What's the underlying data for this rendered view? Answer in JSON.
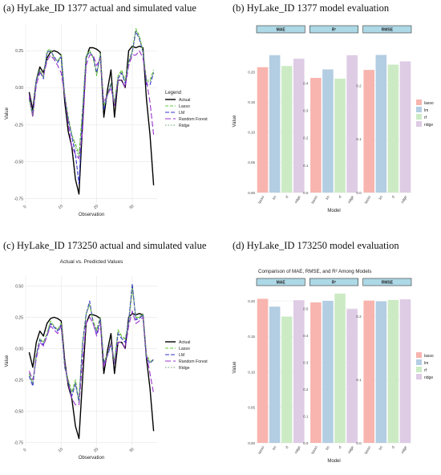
{
  "panels": {
    "a": {
      "title": "(a)  HyLake_ID 1377 actual and simulated value"
    },
    "b": {
      "title": "(b)  HyLake_ID 1377 model evaluation"
    },
    "c": {
      "title": "(c)  HyLake_ID 173250 actual and simulated value"
    },
    "d": {
      "title": "(d)  HyLake_ID 173250 model evaluation"
    }
  },
  "colors": {
    "actual": "#000000",
    "lasso": "#66cc33",
    "lm": "#3333cc",
    "random_forest": "#9933cc",
    "ridge": "#669966",
    "bar_lasso": "#f8b4ae",
    "bar_lm": "#b3cde3",
    "bar_rf": "#ccebc5",
    "bar_ridge": "#decbe4",
    "strip_fill": "#add8e6",
    "grid": "#e6e6e6"
  },
  "chart_data": [
    {
      "panel": "a",
      "type": "line",
      "title": "",
      "xlabel": "Observation",
      "ylabel": "Value",
      "xlim": [
        0,
        37
      ],
      "ylim": [
        -0.78,
        0.43
      ],
      "x_ticks": [
        0,
        10,
        20,
        30
      ],
      "y_ticks": [
        -0.75,
        -0.5,
        -0.25,
        0.0,
        0.25
      ],
      "y_tick_labels": [
        "-0.75",
        "-0.50",
        "-0.25",
        "0.00",
        "0.25"
      ],
      "legend": {
        "title": "Legend",
        "entries": [
          "Actual",
          "Lasso",
          "LM",
          "Random Forest",
          "Ridge"
        ],
        "position": "right"
      },
      "x": [
        1,
        2,
        3,
        4,
        5,
        6,
        7,
        8,
        9,
        10,
        11,
        12,
        13,
        14,
        15,
        16,
        17,
        18,
        19,
        20,
        21,
        22,
        23,
        24,
        25,
        26,
        27,
        28,
        29,
        30,
        31,
        32,
        33,
        34,
        35,
        36
      ],
      "series": [
        {
          "name": "Actual",
          "values": [
            -0.03,
            -0.15,
            0.05,
            0.14,
            0.1,
            0.2,
            0.24,
            0.25,
            0.24,
            0.22,
            -0.1,
            -0.3,
            -0.4,
            -0.62,
            -0.72,
            -0.25,
            0.2,
            0.27,
            0.27,
            0.26,
            0.24,
            -0.2,
            -0.02,
            0.12,
            -0.2,
            0.05,
            0.05,
            0.0,
            0.25,
            0.28,
            0.27,
            0.28,
            0.27,
            -0.08,
            -0.32,
            -0.66
          ]
        },
        {
          "name": "Lasso",
          "values": [
            -0.08,
            -0.2,
            0.05,
            0.12,
            0.07,
            0.25,
            0.26,
            0.2,
            0.18,
            0.22,
            -0.05,
            -0.2,
            -0.32,
            -0.38,
            -0.45,
            -0.15,
            0.22,
            0.25,
            0.2,
            0.08,
            0.23,
            -0.12,
            -0.05,
            0.03,
            -0.1,
            0.08,
            0.12,
            0.05,
            0.18,
            0.25,
            0.4,
            0.35,
            0.25,
            0.05,
            0.05,
            0.12
          ]
        },
        {
          "name": "LM",
          "values": [
            -0.07,
            -0.18,
            0.05,
            0.11,
            0.06,
            0.24,
            0.25,
            0.21,
            0.17,
            0.21,
            -0.07,
            -0.22,
            -0.33,
            -0.45,
            -0.65,
            -0.18,
            0.21,
            0.24,
            0.21,
            0.1,
            0.22,
            -0.15,
            -0.05,
            0.02,
            -0.12,
            0.06,
            0.1,
            0.03,
            0.17,
            0.24,
            0.38,
            0.33,
            0.24,
            0.02,
            0.02,
            0.1
          ]
        },
        {
          "name": "Random Forest",
          "values": [
            -0.05,
            -0.2,
            0.02,
            0.1,
            0.08,
            0.18,
            0.22,
            0.19,
            0.15,
            0.1,
            -0.05,
            -0.25,
            -0.4,
            -0.45,
            -0.48,
            -0.3,
            0.15,
            0.22,
            0.22,
            0.15,
            0.2,
            -0.1,
            -0.05,
            0.0,
            -0.12,
            0.05,
            0.05,
            0.0,
            0.15,
            0.22,
            0.22,
            0.25,
            0.2,
            0.05,
            -0.1,
            -0.32
          ]
        },
        {
          "name": "Ridge",
          "values": [
            -0.08,
            -0.18,
            0.05,
            0.12,
            0.07,
            0.23,
            0.25,
            0.2,
            0.18,
            0.21,
            -0.06,
            -0.21,
            -0.32,
            -0.4,
            -0.47,
            -0.17,
            0.21,
            0.24,
            0.21,
            0.09,
            0.22,
            -0.13,
            -0.05,
            0.03,
            -0.11,
            0.07,
            0.11,
            0.04,
            0.17,
            0.24,
            0.39,
            0.34,
            0.24,
            0.04,
            0.04,
            0.11
          ]
        }
      ]
    },
    {
      "panel": "b",
      "type": "bar",
      "title": "",
      "xlabel": "Model",
      "ylabel": "Value",
      "categories": [
        "lasso",
        "lm",
        "rf",
        "ridge"
      ],
      "legend": {
        "entries": [
          "lasso",
          "lm",
          "rf",
          "ridge"
        ],
        "position": "right"
      },
      "facets": [
        {
          "strip": "MAE",
          "ylim": [
            0,
            0.237
          ],
          "y_ticks": [
            0,
            0.05,
            0.1,
            0.15,
            0.2
          ],
          "y_tick_labels": [
            "0.00",
            "0.05",
            "0.10",
            "0.15",
            "0.20"
          ],
          "values": [
            0.208,
            0.228,
            0.21,
            0.222
          ]
        },
        {
          "strip": "R²",
          "ylim": [
            0,
            0.523
          ],
          "y_ticks": [
            0,
            0.1,
            0.2,
            0.3,
            0.4
          ],
          "y_tick_labels": [
            "0.0",
            "0.1",
            "0.2",
            "0.3",
            "0.4"
          ],
          "values": [
            0.42,
            0.451,
            0.417,
            0.503
          ]
        },
        {
          "strip": "RMSE",
          "ylim": [
            0,
            0.2667
          ],
          "y_ticks": [
            0,
            0.1,
            0.2
          ],
          "y_tick_labels": [
            "0.0",
            "0.1",
            "0.2"
          ],
          "values": [
            0.229,
            0.257,
            0.239,
            0.245
          ]
        }
      ]
    },
    {
      "panel": "c",
      "type": "line",
      "title": "Actual vs. Predicted Values",
      "xlabel": "Observation",
      "ylabel": "Value",
      "xlim": [
        0,
        37
      ],
      "ylim": [
        -0.78,
        0.58
      ],
      "x_ticks": [
        0,
        10,
        20,
        30
      ],
      "y_ticks": [
        -0.75,
        -0.5,
        -0.25,
        0.0,
        0.25,
        0.5
      ],
      "y_tick_labels": [
        "-0.75",
        "-0.50",
        "-0.25",
        "0.00",
        "0.25",
        "0.50"
      ],
      "legend": {
        "title": "",
        "entries": [
          "Actual",
          "Lasso",
          "LM",
          "Random Forest",
          "Ridge"
        ],
        "position": "right"
      },
      "x": [
        1,
        2,
        3,
        4,
        5,
        6,
        7,
        8,
        9,
        10,
        11,
        12,
        13,
        14,
        15,
        16,
        17,
        18,
        19,
        20,
        21,
        22,
        23,
        24,
        25,
        26,
        27,
        28,
        29,
        30,
        31,
        32,
        33,
        34,
        35,
        36
      ],
      "series": [
        {
          "name": "Actual",
          "values": [
            -0.03,
            -0.15,
            0.05,
            0.14,
            0.1,
            0.2,
            0.24,
            0.25,
            0.24,
            0.22,
            -0.1,
            -0.3,
            -0.4,
            -0.62,
            -0.72,
            -0.25,
            0.2,
            0.27,
            0.27,
            0.26,
            0.24,
            -0.2,
            -0.02,
            0.12,
            -0.2,
            0.05,
            0.05,
            0.0,
            0.25,
            0.28,
            0.27,
            0.28,
            0.27,
            -0.08,
            -0.32,
            -0.66
          ]
        },
        {
          "name": "Lasso",
          "values": [
            -0.2,
            -0.28,
            -0.05,
            0.08,
            0.05,
            0.12,
            0.22,
            0.18,
            0.15,
            0.2,
            -0.15,
            -0.25,
            -0.35,
            -0.25,
            -0.42,
            0.05,
            0.28,
            0.35,
            0.22,
            0.15,
            0.25,
            -0.1,
            -0.05,
            0.05,
            -0.1,
            0.15,
            0.1,
            0.08,
            0.2,
            0.48,
            0.25,
            0.25,
            0.28,
            -0.05,
            -0.1,
            -0.1
          ]
        },
        {
          "name": "LM",
          "values": [
            -0.22,
            -0.3,
            -0.05,
            0.07,
            0.03,
            0.1,
            0.2,
            0.17,
            0.14,
            0.19,
            -0.15,
            -0.27,
            -0.38,
            -0.28,
            -0.43,
            0.03,
            0.27,
            0.38,
            0.2,
            0.12,
            0.24,
            -0.12,
            -0.06,
            0.03,
            -0.12,
            0.12,
            0.08,
            0.05,
            0.22,
            0.52,
            0.23,
            0.24,
            0.27,
            -0.08,
            -0.12,
            -0.08
          ]
        },
        {
          "name": "Random Forest",
          "values": [
            -0.18,
            -0.25,
            -0.08,
            0.05,
            0.02,
            0.1,
            0.18,
            0.15,
            0.12,
            0.18,
            -0.12,
            -0.28,
            -0.4,
            -0.45,
            -0.45,
            -0.1,
            0.2,
            0.25,
            0.2,
            0.1,
            0.2,
            -0.15,
            -0.05,
            0.05,
            -0.12,
            0.05,
            0.05,
            0.0,
            0.18,
            0.3,
            0.2,
            0.22,
            0.25,
            -0.05,
            -0.2,
            -0.36
          ]
        },
        {
          "name": "Ridge",
          "values": [
            -0.2,
            -0.27,
            -0.05,
            0.08,
            0.05,
            0.12,
            0.21,
            0.18,
            0.15,
            0.2,
            -0.14,
            -0.26,
            -0.36,
            -0.27,
            -0.42,
            0.04,
            0.27,
            0.36,
            0.21,
            0.14,
            0.25,
            -0.11,
            -0.05,
            0.04,
            -0.11,
            0.14,
            0.09,
            0.07,
            0.21,
            0.5,
            0.24,
            0.25,
            0.28,
            -0.06,
            -0.11,
            -0.09
          ]
        }
      ]
    },
    {
      "panel": "d",
      "type": "bar",
      "title": "Comparison of MAE, RMSE, and R² Among Models",
      "xlabel": "Model",
      "ylabel": "Value",
      "categories": [
        "lasso",
        "lm",
        "rf",
        "ridge"
      ],
      "legend": {
        "entries": [
          "lasso",
          "lm",
          "rf",
          "ridge"
        ],
        "position": "right"
      },
      "facets": [
        {
          "strip": "MAE",
          "ylim": [
            0,
            0.2125
          ],
          "y_ticks": [
            0,
            0.05,
            0.1,
            0.15,
            0.2
          ],
          "y_tick_labels": [
            "0.00",
            "0.05",
            "0.10",
            "0.15",
            "0.20"
          ],
          "values": [
            0.203,
            0.192,
            0.178,
            0.201
          ]
        },
        {
          "strip": "R²",
          "ylim": [
            0,
            0.5615
          ],
          "y_ticks": [
            0,
            0.1,
            0.2,
            0.3,
            0.4,
            0.5
          ],
          "y_tick_labels": [
            "0.0",
            "0.1",
            "0.2",
            "0.3",
            "0.4",
            "0.5"
          ],
          "values": [
            0.523,
            0.529,
            0.556,
            0.498
          ]
        },
        {
          "strip": "RMSE",
          "ylim": [
            0,
            0.2385
          ],
          "y_ticks": [
            0,
            0.1,
            0.2
          ],
          "y_tick_labels": [
            "0.0",
            "0.1",
            "0.2"
          ],
          "values": [
            0.225,
            0.224,
            0.226,
            0.227
          ]
        }
      ]
    }
  ]
}
